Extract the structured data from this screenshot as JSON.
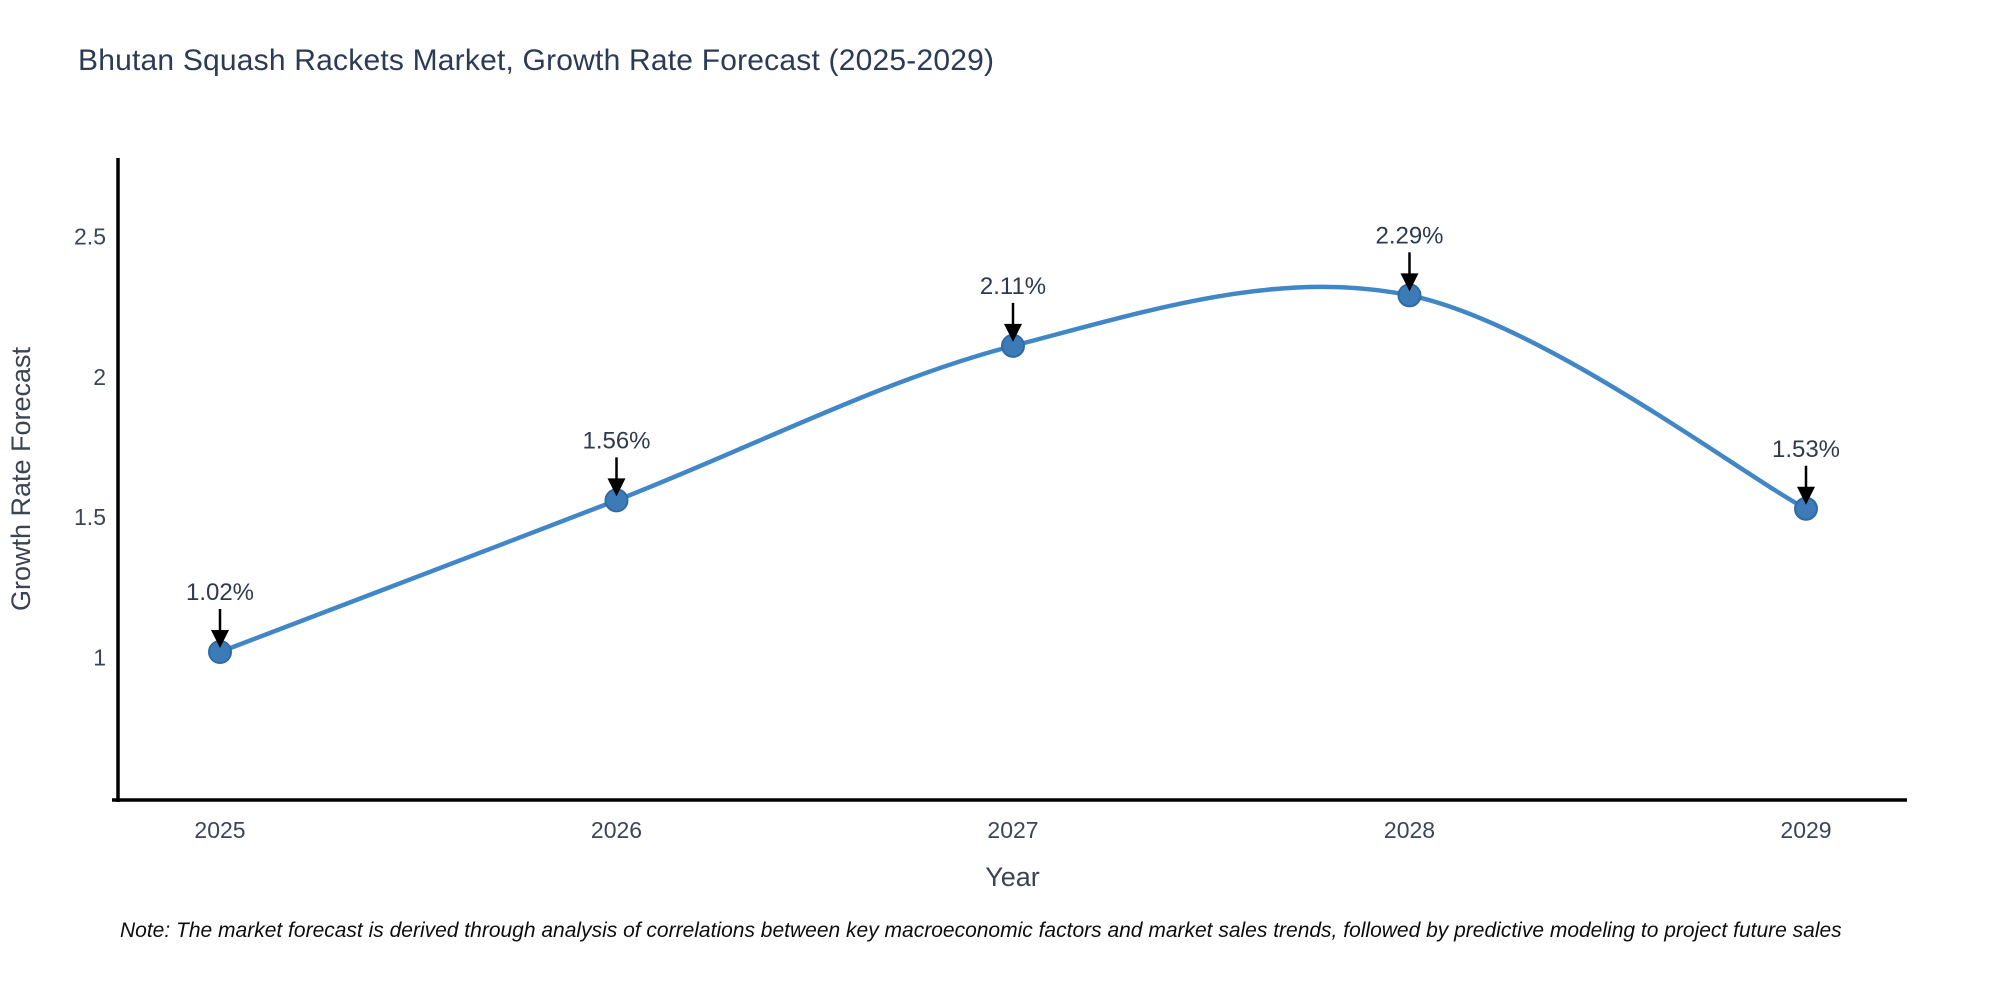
{
  "title": "Bhutan Squash Rackets Market, Growth Rate Forecast (2025-2029)",
  "note": "Note: The market forecast is derived through analysis of correlations between key macroeconomic factors and market sales trends, followed by predictive modeling to project future sales",
  "chart_data": {
    "type": "line",
    "title": "Bhutan Squash Rackets Market, Growth Rate Forecast (2025-2029)",
    "xlabel": "Year",
    "ylabel": "Growth Rate Forecast",
    "categories": [
      "2025",
      "2026",
      "2027",
      "2028",
      "2029"
    ],
    "values": [
      1.02,
      1.56,
      2.11,
      2.29,
      1.53
    ],
    "point_labels": [
      "1.02%",
      "1.56%",
      "2.11%",
      "2.29%",
      "1.53%"
    ],
    "yticks": [
      1,
      1.5,
      2,
      2.5
    ],
    "ytick_labels": [
      "1",
      "1.5",
      "2",
      "2.5"
    ],
    "ylim": [
      0.493,
      2.779
    ],
    "grid": false,
    "legend": false,
    "line_smooth": true,
    "colors": {
      "line": "#4186c6",
      "marker_fill": "#3c7ab8",
      "marker_edge": "#2f6ba6",
      "arrow": "#000000",
      "axis": "#000000",
      "label_text": "#2f3a4f"
    }
  }
}
